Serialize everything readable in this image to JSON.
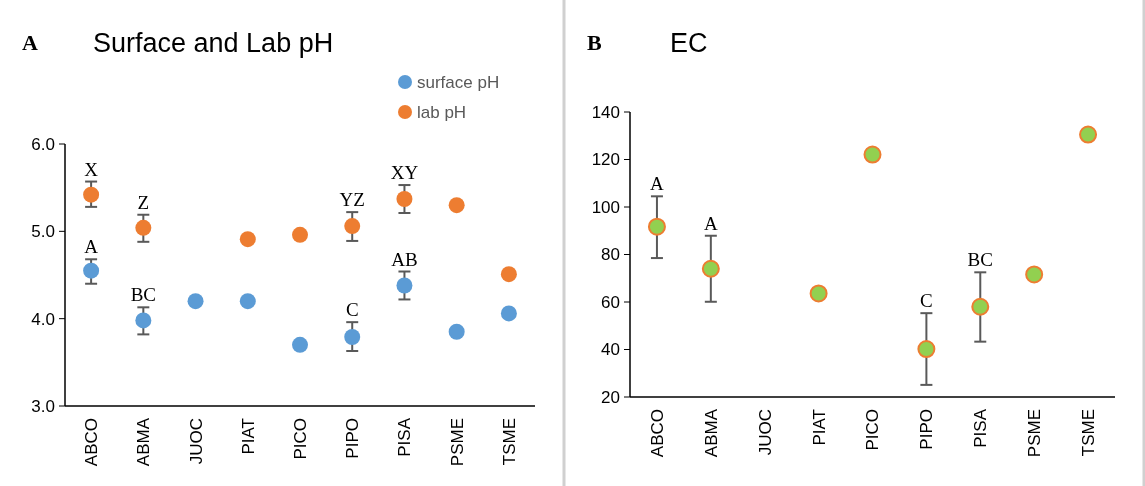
{
  "chart_data": [
    {
      "type": "scatter",
      "title": "Surface and Lab pH",
      "categories": [
        "ABCO",
        "ABMA",
        "JUOC",
        "PIAT",
        "PICO",
        "PIPO",
        "PISA",
        "PSME",
        "TSME"
      ],
      "ylim": [
        3.0,
        6.0
      ],
      "yticks": [
        {
          "value": 3,
          "label": "3.0"
        },
        {
          "value": 4,
          "label": "4.0"
        },
        {
          "value": 5,
          "label": "5.0"
        },
        {
          "value": 6,
          "label": "6.0"
        }
      ],
      "legend": "top right",
      "marker": "circle",
      "series": [
        {
          "name": "surface pH",
          "color": "#5b9bd5",
          "values": [
            4.55,
            3.98,
            4.2,
            4.2,
            3.7,
            3.79,
            4.38,
            3.85,
            4.06
          ],
          "errors": [
            [
              4.4,
              4.68
            ],
            [
              3.82,
              4.13
            ],
            null,
            null,
            null,
            [
              3.63,
              3.96
            ],
            [
              4.22,
              4.54
            ],
            null,
            null
          ]
        },
        {
          "name": "lab pH",
          "color": "#ed7d31",
          "values": [
            5.42,
            5.04,
            null,
            4.91,
            4.96,
            5.06,
            5.37,
            5.3,
            4.51
          ],
          "errors": [
            [
              5.28,
              5.57
            ],
            [
              4.88,
              5.19
            ],
            null,
            null,
            null,
            [
              4.89,
              5.22
            ],
            [
              5.21,
              5.53
            ],
            null,
            null
          ]
        }
      ],
      "annotations": [
        "A",
        {
          "text": "X",
          "x": "ABCO",
          "y": 5.57
        },
        {
          "text": "Z",
          "x": "ABMA",
          "y": 5.19
        },
        {
          "text": "YZ",
          "x": "PIPO",
          "y": 5.22
        },
        {
          "text": "XY",
          "x": "PISA",
          "y": 5.53
        },
        {
          "text": "A",
          "x": "ABCO",
          "y": 4.68
        },
        {
          "text": "BC",
          "x": "ABMA",
          "y": 4.13
        },
        {
          "text": "C",
          "x": "PIPO",
          "y": 3.96
        },
        {
          "text": "AB",
          "x": "PISA",
          "y": 4.54
        }
      ]
    },
    {
      "type": "scatter",
      "title": "EC",
      "categories": [
        "ABCO",
        "ABMA",
        "JUOC",
        "PIAT",
        "PICO",
        "PIPO",
        "PISA",
        "PSME",
        "TSME"
      ],
      "ylim": [
        20,
        140
      ],
      "yticks": [
        20,
        40,
        60,
        80,
        100,
        120,
        140
      ],
      "marker": "circle",
      "series": [
        {
          "color": "#92d050",
          "values": [
            91.7,
            74,
            null,
            63.6,
            122.1,
            40.2,
            58,
            71.6,
            130.5
          ],
          "errors": [
            [
              78.5,
              104.5
            ],
            [
              60.1,
              87.9
            ],
            null,
            null,
            null,
            [
              25.1,
              55.3
            ],
            [
              43.3,
              72.5
            ],
            null,
            null
          ]
        }
      ],
      "annotations": [
        "B",
        {
          "text": "A",
          "x": "ABCO",
          "y": 104.5
        },
        {
          "text": "A",
          "x": "ABMA",
          "y": 87.9
        },
        {
          "text": "C",
          "x": "PIPO",
          "y": 55.3
        },
        {
          "text": "BC",
          "x": "PISA",
          "y": 72.5
        }
      ]
    }
  ]
}
